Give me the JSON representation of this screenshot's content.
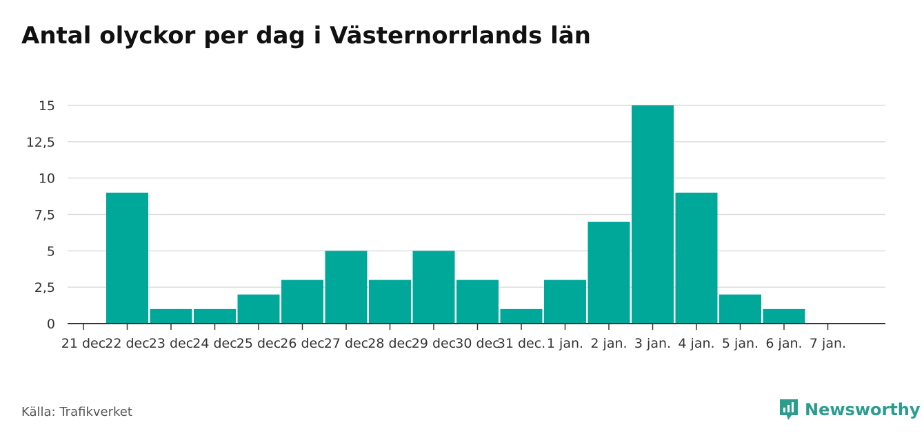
{
  "title": "Antal olyckor per dag i Västernorrlands län",
  "source": "Källa: Trafikverket",
  "brand": {
    "name": "Newsworthy",
    "icon": "newsworthy-logo-icon",
    "color": "#2a9d8f"
  },
  "chart_data": {
    "type": "bar",
    "title": "Antal olyckor per dag i Västernorrlands län",
    "xlabel": "",
    "ylabel": "",
    "categories": [
      "21 dec",
      "22 dec",
      "23 dec",
      "24 dec",
      "25 dec",
      "26 dec",
      "27 dec",
      "28 dec",
      "29 dec",
      "30 dec",
      "31 dec.",
      "1 jan.",
      "2 jan.",
      "3 jan.",
      "4 jan.",
      "5 jan.",
      "6 jan.",
      "7 jan."
    ],
    "values": [
      0,
      9,
      1,
      1,
      2,
      3,
      5,
      3,
      5,
      3,
      1,
      3,
      7,
      15,
      9,
      2,
      1,
      0
    ],
    "ylim": [
      0,
      15
    ],
    "yticks": [
      0,
      2.5,
      5,
      7.5,
      10,
      12.5,
      15
    ],
    "ytick_labels": [
      "0",
      "2,5",
      "5",
      "7,5",
      "10",
      "12,5",
      "15"
    ],
    "grid": true,
    "bar_color": "#00a89a",
    "grid_color": "#dddddd",
    "axis_color": "#333333"
  }
}
